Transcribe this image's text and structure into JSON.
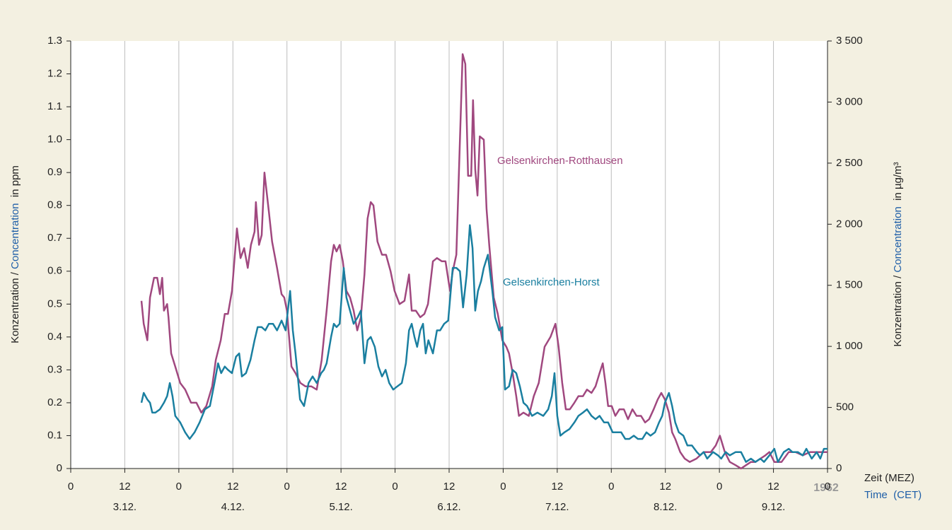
{
  "chart_data": {
    "type": "line",
    "ylabel": [
      "Konzentration / ",
      "Concentration",
      "  in ppm"
    ],
    "y2label": [
      "Konzentration / ",
      "Concentration",
      "  in µg/m³"
    ],
    "xlabel": [
      "Zeit (MEZ)",
      "Time  (CET)"
    ],
    "year": "1962",
    "day_labels": [
      "3.12.",
      "4.12.",
      "5.12.",
      "6.12.",
      "7.12.",
      "8.12.",
      "9.12."
    ],
    "xlim": [
      0,
      168
    ],
    "xticks": [
      {
        "value": 0,
        "label": "0"
      },
      {
        "value": 12,
        "label": "12"
      },
      {
        "value": 24,
        "label": "0"
      },
      {
        "value": 36,
        "label": "12"
      },
      {
        "value": 48,
        "label": "0"
      },
      {
        "value": 60,
        "label": "12"
      },
      {
        "value": 72,
        "label": "0"
      },
      {
        "value": 84,
        "label": "12"
      },
      {
        "value": 96,
        "label": "0"
      },
      {
        "value": 108,
        "label": "12"
      },
      {
        "value": 120,
        "label": "0"
      },
      {
        "value": 132,
        "label": "12"
      },
      {
        "value": 144,
        "label": "0"
      },
      {
        "value": 156,
        "label": "12"
      },
      {
        "value": 168,
        "label": "0"
      }
    ],
    "ylim": [
      0,
      1.3
    ],
    "yticks": [
      0,
      0.1,
      0.2,
      0.3,
      0.4,
      0.5,
      0.6,
      0.7,
      0.8,
      0.9,
      {
        "value": 1,
        "label": "1.0"
      },
      1.1,
      1.2,
      1.3
    ],
    "y2lim": [
      0,
      3500
    ],
    "y2ticks": [
      0,
      500,
      {
        "value": 1000,
        "label": "1 000"
      },
      {
        "value": 1500,
        "label": "1 500"
      },
      {
        "value": 2000,
        "label": "2 000"
      },
      {
        "value": 2500,
        "label": "2 500"
      },
      {
        "value": 3000,
        "label": "3 000"
      },
      {
        "value": 3500,
        "label": "3 500"
      }
    ],
    "grid": true,
    "series": [
      {
        "name": "Gelsenkirchen-Rotthausen",
        "color": "#a0487f",
        "x": [
          15.7,
          16.2,
          17.0,
          17.6,
          18.5,
          19.2,
          19.8,
          20.3,
          20.7,
          21.4,
          21.7,
          22.3,
          23.2,
          24.3,
          25.4,
          26.7,
          27.9,
          29.0,
          30.1,
          31.4,
          32.2,
          33.3,
          34.2,
          34.9,
          35.8,
          36.9,
          37.7,
          38.5,
          39.3,
          40.0,
          40.8,
          41.1,
          41.8,
          42.4,
          43.0,
          44.0,
          44.7,
          45.8,
          46.8,
          47.4,
          48.0,
          49.0,
          49.9,
          51.0,
          52.1,
          53.4,
          54.6,
          55.7,
          56.8,
          57.8,
          58.4,
          59.0,
          59.7,
          60.4,
          61.2,
          62.0,
          62.8,
          63.6,
          64.4,
          65.2,
          65.9,
          66.6,
          67.2,
          68.1,
          69.1,
          70.0,
          71.0,
          71.9,
          73.0,
          74.1,
          75.1,
          75.7,
          76.6,
          77.6,
          78.5,
          79.3,
          80.4,
          81.3,
          82.4,
          83.2,
          84.2,
          84.8,
          85.6,
          86.4,
          87.0,
          87.6,
          88.2,
          88.9,
          89.3,
          89.8,
          90.3,
          90.8,
          91.7,
          92.3,
          92.9,
          93.9,
          94.8,
          95.8,
          96.7,
          97.3,
          98.1,
          98.9,
          99.5,
          100.5,
          101.7,
          102.8,
          103.9,
          105.2,
          106.5,
          107.6,
          108.3,
          109.1,
          109.9,
          110.8,
          111.8,
          112.7,
          113.7,
          114.6,
          115.6,
          116.5,
          117.4,
          118.1,
          118.7,
          119.3,
          120.1,
          120.9,
          121.8,
          122.8,
          123.7,
          124.7,
          125.6,
          126.6,
          127.5,
          128.4,
          129.4,
          130.3,
          131.1,
          131.9,
          132.8,
          133.5,
          134.2,
          135.3,
          136.3,
          137.4,
          138.9,
          140.5,
          142.1,
          143.2,
          144.1,
          145.2,
          146.3,
          147.6,
          148.8,
          149.9,
          151.0,
          152.0,
          153.1,
          154.2,
          155.1,
          156.2,
          157.8,
          159.4,
          160.9,
          162.5,
          164.1,
          165.6,
          167.2,
          168.0
        ],
        "values": [
          0.51,
          0.44,
          0.39,
          0.52,
          0.58,
          0.58,
          0.53,
          0.58,
          0.48,
          0.5,
          0.46,
          0.35,
          0.31,
          0.26,
          0.24,
          0.2,
          0.2,
          0.17,
          0.19,
          0.25,
          0.33,
          0.39,
          0.47,
          0.47,
          0.54,
          0.73,
          0.64,
          0.67,
          0.61,
          0.68,
          0.72,
          0.81,
          0.68,
          0.71,
          0.9,
          0.78,
          0.69,
          0.61,
          0.53,
          0.52,
          0.48,
          0.31,
          0.29,
          0.26,
          0.25,
          0.25,
          0.24,
          0.33,
          0.48,
          0.63,
          0.68,
          0.66,
          0.68,
          0.63,
          0.54,
          0.52,
          0.48,
          0.42,
          0.46,
          0.59,
          0.76,
          0.81,
          0.8,
          0.69,
          0.65,
          0.65,
          0.6,
          0.54,
          0.5,
          0.51,
          0.59,
          0.48,
          0.48,
          0.46,
          0.47,
          0.5,
          0.63,
          0.64,
          0.63,
          0.63,
          0.54,
          0.6,
          0.65,
          1.0,
          1.26,
          1.23,
          0.89,
          0.89,
          1.12,
          0.91,
          0.83,
          1.01,
          1.0,
          0.79,
          0.68,
          0.52,
          0.47,
          0.39,
          0.37,
          0.35,
          0.29,
          0.22,
          0.16,
          0.17,
          0.16,
          0.22,
          0.26,
          0.37,
          0.4,
          0.44,
          0.37,
          0.26,
          0.18,
          0.18,
          0.2,
          0.22,
          0.22,
          0.24,
          0.23,
          0.25,
          0.29,
          0.32,
          0.26,
          0.19,
          0.19,
          0.16,
          0.18,
          0.18,
          0.15,
          0.18,
          0.16,
          0.16,
          0.14,
          0.15,
          0.18,
          0.21,
          0.23,
          0.21,
          0.17,
          0.11,
          0.09,
          0.05,
          0.03,
          0.02,
          0.03,
          0.05,
          0.05,
          0.07,
          0.1,
          0.05,
          0.02,
          0.01,
          0,
          0.01,
          0.02,
          0.02,
          0.03,
          0.04,
          0.05,
          0.02,
          0.02,
          0.05,
          0.05,
          0.04,
          0.05,
          0.05,
          0.05,
          0.05
        ]
      },
      {
        "name": "Gelsenkirchen-Horst",
        "color": "#1a7fa0",
        "x": [
          15.7,
          16.2,
          17.0,
          17.6,
          18.1,
          18.8,
          19.8,
          20.7,
          21.4,
          22.0,
          22.6,
          23.2,
          24.3,
          25.4,
          26.4,
          27.5,
          28.6,
          29.8,
          30.9,
          31.9,
          32.7,
          33.4,
          34.2,
          34.9,
          35.8,
          36.7,
          37.4,
          38.0,
          38.9,
          39.9,
          40.8,
          41.5,
          42.4,
          43.2,
          44.0,
          44.9,
          45.8,
          46.8,
          47.7,
          48.7,
          49.3,
          49.9,
          50.9,
          51.8,
          52.8,
          53.7,
          54.6,
          55.6,
          56.2,
          56.8,
          57.8,
          58.4,
          59.0,
          59.7,
          60.6,
          61.2,
          62.0,
          62.8,
          63.7,
          64.4,
          65.2,
          65.9,
          66.6,
          67.5,
          68.3,
          69.1,
          69.9,
          70.7,
          71.6,
          72.5,
          73.5,
          74.4,
          75.1,
          75.7,
          76.3,
          76.9,
          77.6,
          78.2,
          78.8,
          79.4,
          80.4,
          81.3,
          82.0,
          82.9,
          83.8,
          84.8,
          85.6,
          86.4,
          87.1,
          87.9,
          88.6,
          89.2,
          89.8,
          90.4,
          91.1,
          91.7,
          92.6,
          93.6,
          94.2,
          95.1,
          95.8,
          96.4,
          97.3,
          98.1,
          98.9,
          99.7,
          100.5,
          101.3,
          102.4,
          103.6,
          104.9,
          106.0,
          106.8,
          107.4,
          108.0,
          108.7,
          109.6,
          110.7,
          111.8,
          112.7,
          113.7,
          114.6,
          115.6,
          116.5,
          117.4,
          118.4,
          119.3,
          120.3,
          121.2,
          122.2,
          123.1,
          124.0,
          125.0,
          125.9,
          126.9,
          127.8,
          128.7,
          129.7,
          130.6,
          131.3,
          131.9,
          132.8,
          133.5,
          134.2,
          135.0,
          136.0,
          136.9,
          137.9,
          139.0,
          139.7,
          140.5,
          141.3,
          142.6,
          143.7,
          144.4,
          145.4,
          146.3,
          147.6,
          148.8,
          149.9,
          151.0,
          152.0,
          153.1,
          153.9,
          155.1,
          156.2,
          157.0,
          158.3,
          159.4,
          160.2,
          161.4,
          162.5,
          163.3,
          164.5,
          165.6,
          166.4,
          167.2,
          168.0
        ],
        "values": [
          0.2,
          0.23,
          0.21,
          0.2,
          0.17,
          0.17,
          0.18,
          0.2,
          0.22,
          0.26,
          0.22,
          0.16,
          0.14,
          0.11,
          0.09,
          0.11,
          0.14,
          0.18,
          0.19,
          0.26,
          0.32,
          0.29,
          0.31,
          0.3,
          0.29,
          0.34,
          0.35,
          0.28,
          0.29,
          0.33,
          0.39,
          0.43,
          0.43,
          0.42,
          0.44,
          0.44,
          0.42,
          0.45,
          0.42,
          0.54,
          0.42,
          0.35,
          0.21,
          0.19,
          0.26,
          0.28,
          0.26,
          0.29,
          0.3,
          0.32,
          0.4,
          0.44,
          0.43,
          0.44,
          0.61,
          0.52,
          0.48,
          0.44,
          0.46,
          0.48,
          0.32,
          0.39,
          0.4,
          0.37,
          0.31,
          0.28,
          0.3,
          0.26,
          0.24,
          0.25,
          0.26,
          0.32,
          0.42,
          0.44,
          0.4,
          0.37,
          0.42,
          0.44,
          0.35,
          0.39,
          0.35,
          0.42,
          0.42,
          0.44,
          0.45,
          0.61,
          0.61,
          0.6,
          0.49,
          0.59,
          0.74,
          0.67,
          0.48,
          0.54,
          0.57,
          0.61,
          0.65,
          0.54,
          0.46,
          0.42,
          0.43,
          0.24,
          0.25,
          0.3,
          0.29,
          0.25,
          0.2,
          0.19,
          0.16,
          0.17,
          0.16,
          0.18,
          0.22,
          0.29,
          0.16,
          0.1,
          0.11,
          0.12,
          0.14,
          0.16,
          0.17,
          0.18,
          0.16,
          0.15,
          0.16,
          0.14,
          0.14,
          0.11,
          0.11,
          0.11,
          0.09,
          0.09,
          0.1,
          0.09,
          0.09,
          0.11,
          0.1,
          0.11,
          0.14,
          0.16,
          0.2,
          0.23,
          0.19,
          0.14,
          0.11,
          0.1,
          0.07,
          0.07,
          0.05,
          0.04,
          0.05,
          0.03,
          0.05,
          0.04,
          0.03,
          0.05,
          0.04,
          0.05,
          0.05,
          0.02,
          0.03,
          0.02,
          0.03,
          0.02,
          0.04,
          0.06,
          0.02,
          0.05,
          0.06,
          0.05,
          0.05,
          0.04,
          0.06,
          0.03,
          0.05,
          0.03,
          0.06,
          0.06
        ]
      }
    ]
  }
}
